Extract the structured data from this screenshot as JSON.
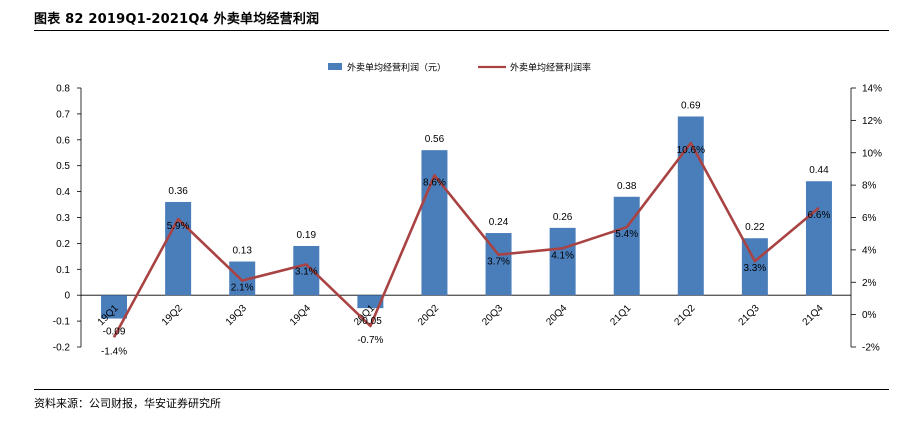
{
  "figure": {
    "title": "图表 82  2019Q1-2021Q4  外卖单均经营利润",
    "source": "资料来源：公司财报，华安证券研究所"
  },
  "chart_data": {
    "type": "bar+line",
    "categories": [
      "19Q1",
      "19Q2",
      "19Q3",
      "19Q4",
      "20Q1",
      "20Q2",
      "20Q3",
      "20Q4",
      "21Q1",
      "21Q2",
      "21Q3",
      "21Q4"
    ],
    "series": [
      {
        "name": "外卖单均经营利润（元）",
        "type": "bar",
        "axis": "left",
        "color": "#4a7ebb",
        "values": [
          -0.09,
          0.36,
          0.13,
          0.19,
          -0.05,
          0.56,
          0.24,
          0.26,
          0.38,
          0.69,
          0.22,
          0.44
        ],
        "labels": [
          "-0.09",
          "0.36",
          "0.13",
          "0.19",
          "-0.05",
          "0.56",
          "0.24",
          "0.26",
          "0.38",
          "0.69",
          "0.22",
          "0.44"
        ]
      },
      {
        "name": "外卖单均经营利润率",
        "type": "line",
        "axis": "right",
        "color": "#a94343",
        "values": [
          -1.4,
          5.9,
          2.1,
          3.1,
          -0.7,
          8.6,
          3.7,
          4.1,
          5.4,
          10.6,
          3.3,
          6.6
        ],
        "labels": [
          "-1.4%",
          "5.9%",
          "2.1%",
          "3.1%",
          "-0.7%",
          "8.6%",
          "3.7%",
          "4.1%",
          "5.4%",
          "10.6%",
          "3.3%",
          "6.6%"
        ]
      }
    ],
    "left_axis": {
      "ylim": [
        -0.2,
        0.8
      ],
      "ticks": [
        -0.2,
        -0.1,
        0,
        0.1,
        0.2,
        0.3,
        0.4,
        0.5,
        0.6,
        0.7,
        0.8
      ],
      "tick_labels": [
        "-0.2",
        "-0.1",
        "0",
        "0.1",
        "0.2",
        "0.3",
        "0.4",
        "0.5",
        "0.6",
        "0.7",
        "0.8"
      ]
    },
    "right_axis": {
      "ylim": [
        -2,
        14
      ],
      "ticks": [
        -2,
        0,
        2,
        4,
        6,
        8,
        10,
        12,
        14
      ],
      "tick_labels": [
        "-2%",
        "0%",
        "2%",
        "4%",
        "6%",
        "8%",
        "10%",
        "12%",
        "14%"
      ]
    },
    "legend_position": "top-center",
    "grid": false
  }
}
